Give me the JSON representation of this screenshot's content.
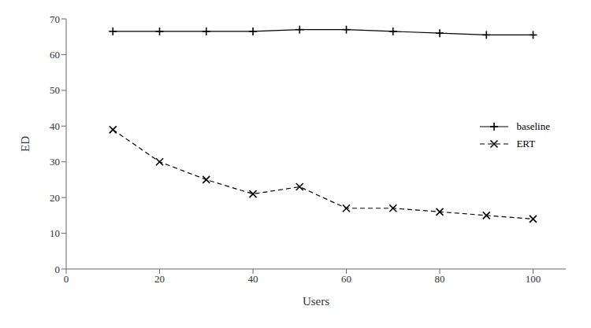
{
  "chart_data": {
    "type": "line",
    "x": [
      10,
      20,
      30,
      40,
      50,
      60,
      70,
      80,
      90,
      100
    ],
    "series": [
      {
        "name": "baseline",
        "color": "#000000",
        "values": [
          66.5,
          66.5,
          66.5,
          66.5,
          67.0,
          67.0,
          66.5,
          66.0,
          65.5,
          65.5
        ],
        "marker": "plus",
        "line_style": "solid"
      },
      {
        "name": "ERT",
        "color": "#000000",
        "values": [
          39.0,
          30.0,
          25.0,
          21.0,
          23.0,
          17.0,
          17.0,
          16.0,
          15.0,
          14.0
        ],
        "marker": "x",
        "line_style": "dashed"
      }
    ],
    "xlabel": "Users",
    "ylabel": "ED",
    "xlim": [
      0,
      107
    ],
    "ylim": [
      0,
      70
    ],
    "xticks": [
      0,
      20,
      40,
      60,
      80,
      100
    ],
    "yticks": [
      0,
      10,
      20,
      30,
      40,
      50,
      60,
      70
    ],
    "legend": "right"
  }
}
